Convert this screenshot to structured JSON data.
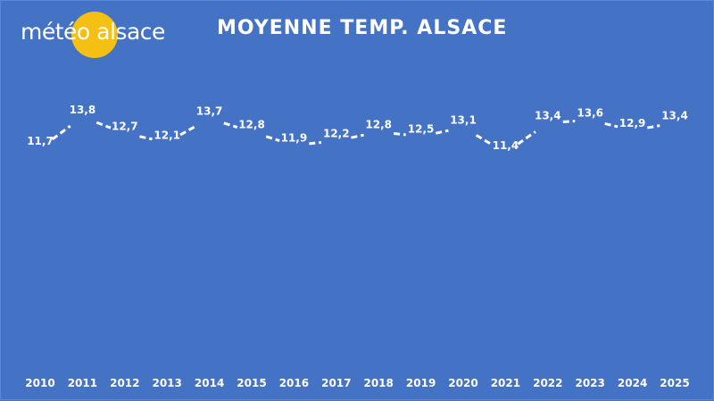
{
  "logo": {
    "text": "météo alsace",
    "sun_color": "#f5c013"
  },
  "colors": {
    "background": "#4472c4",
    "line": "#ffffff"
  },
  "chart_data": {
    "type": "line",
    "title": "MOYENNE TEMP. ALSACE",
    "x": [
      "2010",
      "2011",
      "2012",
      "2013",
      "2014",
      "2015",
      "2016",
      "2017",
      "2018",
      "2019",
      "2020",
      "2021",
      "2022",
      "2023",
      "2024",
      "2025"
    ],
    "values": [
      11.7,
      13.8,
      12.7,
      12.1,
      13.7,
      12.8,
      11.9,
      12.2,
      12.8,
      12.5,
      13.1,
      11.4,
      13.4,
      13.6,
      12.9,
      13.4
    ],
    "value_labels": [
      "11,7",
      "13,8",
      "12,7",
      "12,1",
      "13,7",
      "12,8",
      "11,9",
      "12,2",
      "12,8",
      "12,5",
      "13,1",
      "11,4",
      "13,4",
      "13,6",
      "12,9",
      "13,4"
    ],
    "line_style": "dashed",
    "drop_lines": true,
    "grid": false,
    "legend": "none",
    "y_axis_visible": false
  }
}
